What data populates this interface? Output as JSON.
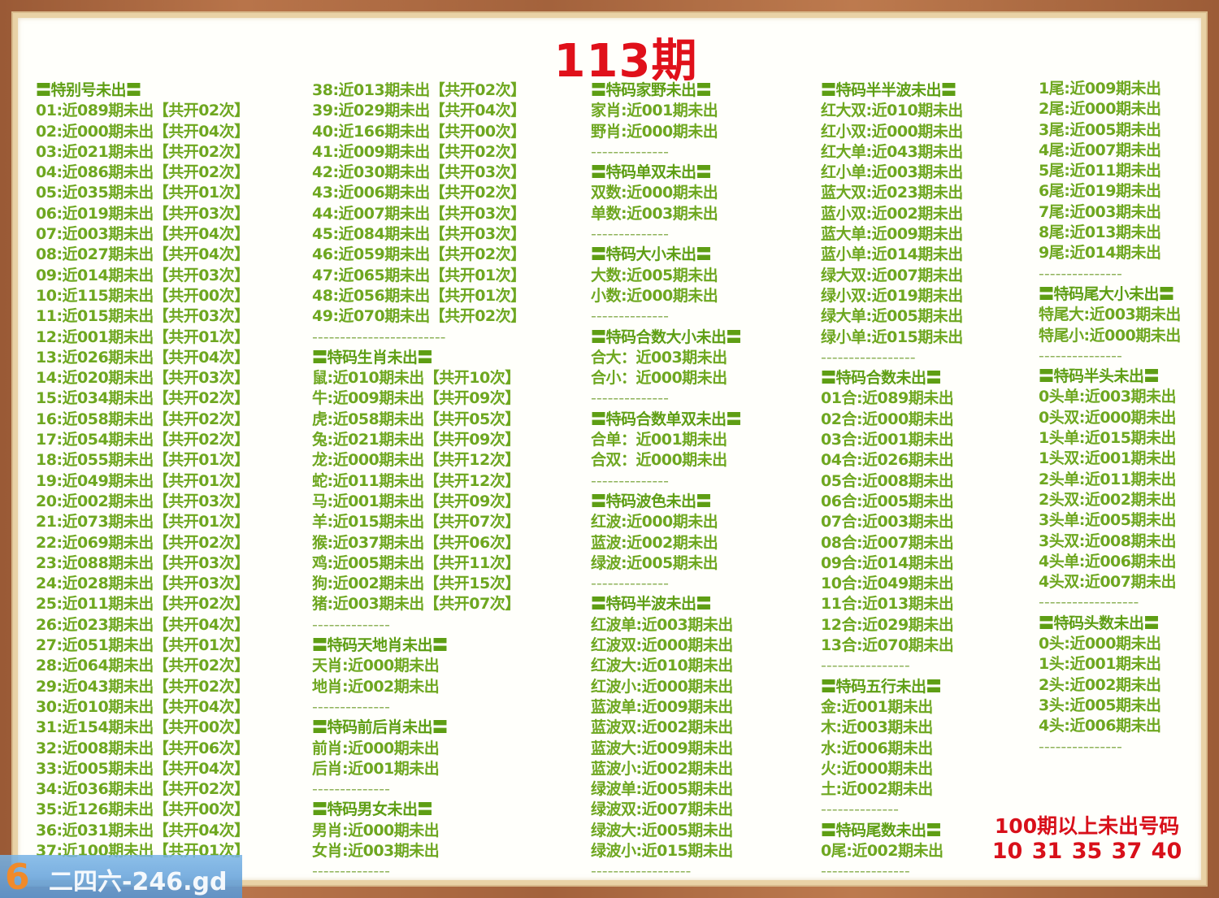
{
  "title": "113期",
  "columns": [
    [
      {
        "t": "header",
        "text": "〓特别号未出〓"
      },
      {
        "t": "item",
        "text": "01:近089期未出【共开02次】"
      },
      {
        "t": "item",
        "text": "02:近000期未出【共开04次】"
      },
      {
        "t": "item",
        "text": "03:近021期未出【共开02次】"
      },
      {
        "t": "item",
        "text": "04:近086期未出【共开02次】"
      },
      {
        "t": "item",
        "text": "05:近035期未出【共开01次】"
      },
      {
        "t": "item",
        "text": "06:近019期未出【共开03次】"
      },
      {
        "t": "item",
        "text": "07:近003期未出【共开04次】"
      },
      {
        "t": "item",
        "text": "08:近027期未出【共开04次】"
      },
      {
        "t": "item",
        "text": "09:近014期未出【共开03次】"
      },
      {
        "t": "item",
        "text": "10:近115期未出【共开00次】"
      },
      {
        "t": "item",
        "text": "11:近015期未出【共开03次】"
      },
      {
        "t": "item",
        "text": "12:近001期未出【共开01次】"
      },
      {
        "t": "item",
        "text": "13:近026期未出【共开04次】"
      },
      {
        "t": "item",
        "text": "14:近020期未出【共开03次】"
      },
      {
        "t": "item",
        "text": "15:近034期未出【共开02次】"
      },
      {
        "t": "item",
        "text": "16:近058期未出【共开02次】"
      },
      {
        "t": "item",
        "text": "17:近054期未出【共开02次】"
      },
      {
        "t": "item",
        "text": "18:近055期未出【共开01次】"
      },
      {
        "t": "item",
        "text": "19:近049期未出【共开01次】"
      },
      {
        "t": "item",
        "text": "20:近002期未出【共开03次】"
      },
      {
        "t": "item",
        "text": "21:近073期未出【共开01次】"
      },
      {
        "t": "item",
        "text": "22:近069期未出【共开02次】"
      },
      {
        "t": "item",
        "text": "23:近088期未出【共开03次】"
      },
      {
        "t": "item",
        "text": "24:近028期未出【共开03次】"
      },
      {
        "t": "item",
        "text": "25:近011期未出【共开02次】"
      },
      {
        "t": "item",
        "text": "26:近023期未出【共开04次】"
      },
      {
        "t": "item",
        "text": "27:近051期未出【共开01次】"
      },
      {
        "t": "item",
        "text": "28:近064期未出【共开02次】"
      },
      {
        "t": "item",
        "text": "29:近043期未出【共开02次】"
      },
      {
        "t": "item",
        "text": "30:近010期未出【共开04次】"
      },
      {
        "t": "item",
        "text": "31:近154期未出【共开00次】"
      },
      {
        "t": "item",
        "text": "32:近008期未出【共开06次】"
      },
      {
        "t": "item",
        "text": "33:近005期未出【共开04次】"
      },
      {
        "t": "item",
        "text": "34:近036期未出【共开02次】"
      },
      {
        "t": "item",
        "text": "35:近126期未出【共开00次】"
      },
      {
        "t": "item",
        "text": "36:近031期未出【共开04次】"
      },
      {
        "t": "item",
        "text": "37:近100期未出【共开01次】"
      }
    ],
    [
      {
        "t": "item",
        "text": "38:近013期未出【共开02次】"
      },
      {
        "t": "item",
        "text": "39:近029期未出【共开04次】"
      },
      {
        "t": "item",
        "text": "40:近166期未出【共开00次】"
      },
      {
        "t": "item",
        "text": "41:近009期未出【共开02次】"
      },
      {
        "t": "item",
        "text": "42:近030期未出【共开03次】"
      },
      {
        "t": "item",
        "text": "43:近006期未出【共开02次】"
      },
      {
        "t": "item",
        "text": "44:近007期未出【共开03次】"
      },
      {
        "t": "item",
        "text": "45:近084期未出【共开03次】"
      },
      {
        "t": "item",
        "text": "46:近059期未出【共开02次】"
      },
      {
        "t": "item",
        "text": "47:近065期未出【共开01次】"
      },
      {
        "t": "item",
        "text": "48:近056期未出【共开01次】"
      },
      {
        "t": "item",
        "text": "49:近070期未出【共开02次】"
      },
      {
        "t": "divider",
        "text": "------------------------"
      },
      {
        "t": "header",
        "text": "〓特码生肖未出〓"
      },
      {
        "t": "item",
        "text": "鼠:近010期未出【共开10次】"
      },
      {
        "t": "item",
        "text": "牛:近009期未出【共开09次】"
      },
      {
        "t": "item",
        "text": "虎:近058期未出【共开05次】"
      },
      {
        "t": "item",
        "text": "兔:近021期未出【共开09次】"
      },
      {
        "t": "item",
        "text": "龙:近000期未出【共开12次】"
      },
      {
        "t": "item",
        "text": "蛇:近011期未出【共开12次】"
      },
      {
        "t": "item",
        "text": "马:近001期未出【共开09次】"
      },
      {
        "t": "item",
        "text": "羊:近015期未出【共开07次】"
      },
      {
        "t": "item",
        "text": "猴:近037期未出【共开06次】"
      },
      {
        "t": "item",
        "text": "鸡:近005期未出【共开11次】"
      },
      {
        "t": "item",
        "text": "狗:近002期未出【共开15次】"
      },
      {
        "t": "item",
        "text": "猪:近003期未出【共开07次】"
      },
      {
        "t": "divider",
        "text": "--------------"
      },
      {
        "t": "header",
        "text": "〓特码天地肖未出〓"
      },
      {
        "t": "item",
        "text": "天肖:近000期未出"
      },
      {
        "t": "item",
        "text": "地肖:近002期未出"
      },
      {
        "t": "divider",
        "text": "--------------"
      },
      {
        "t": "header",
        "text": "〓特码前后肖未出〓"
      },
      {
        "t": "item",
        "text": "前肖:近000期未出"
      },
      {
        "t": "item",
        "text": "后肖:近001期未出"
      },
      {
        "t": "divider",
        "text": "--------------"
      },
      {
        "t": "header",
        "text": "〓特码男女未出〓"
      },
      {
        "t": "item",
        "text": "男肖:近000期未出"
      },
      {
        "t": "item",
        "text": "女肖:近003期未出"
      },
      {
        "t": "divider",
        "text": "--------------"
      }
    ],
    [
      {
        "t": "header",
        "text": "〓特码家野未出〓"
      },
      {
        "t": "item",
        "text": "家肖:近001期未出"
      },
      {
        "t": "item",
        "text": "野肖:近000期未出"
      },
      {
        "t": "divider",
        "text": "--------------"
      },
      {
        "t": "header",
        "text": "〓特码单双未出〓"
      },
      {
        "t": "item",
        "text": "双数:近000期未出"
      },
      {
        "t": "item",
        "text": "单数:近003期未出"
      },
      {
        "t": "divider",
        "text": "--------------"
      },
      {
        "t": "header",
        "text": "〓特码大小未出〓"
      },
      {
        "t": "item",
        "text": "大数:近005期未出"
      },
      {
        "t": "item",
        "text": "小数:近000期未出"
      },
      {
        "t": "divider",
        "text": "--------------"
      },
      {
        "t": "header",
        "text": "〓特码合数大小未出〓"
      },
      {
        "t": "item",
        "text": "合大：近003期未出"
      },
      {
        "t": "item",
        "text": "合小：近000期未出"
      },
      {
        "t": "divider",
        "text": "--------------"
      },
      {
        "t": "header",
        "text": "〓特码合数单双未出〓"
      },
      {
        "t": "item",
        "text": "合单：近001期未出"
      },
      {
        "t": "item",
        "text": "合双：近000期未出"
      },
      {
        "t": "divider",
        "text": "--------------"
      },
      {
        "t": "header",
        "text": "〓特码波色未出〓"
      },
      {
        "t": "item",
        "text": "红波:近000期未出"
      },
      {
        "t": "item",
        "text": "蓝波:近002期未出"
      },
      {
        "t": "item",
        "text": "绿波:近005期未出"
      },
      {
        "t": "divider",
        "text": "--------------"
      },
      {
        "t": "header",
        "text": "〓特码半波未出〓"
      },
      {
        "t": "item",
        "text": "红波单:近003期未出"
      },
      {
        "t": "item",
        "text": "红波双:近000期未出"
      },
      {
        "t": "item",
        "text": "红波大:近010期未出"
      },
      {
        "t": "item",
        "text": "红波小:近000期未出"
      },
      {
        "t": "item",
        "text": "蓝波单:近009期未出"
      },
      {
        "t": "item",
        "text": "蓝波双:近002期未出"
      },
      {
        "t": "item",
        "text": "蓝波大:近009期未出"
      },
      {
        "t": "item",
        "text": "蓝波小:近002期未出"
      },
      {
        "t": "item",
        "text": "绿波单:近005期未出"
      },
      {
        "t": "item",
        "text": "绿波双:近007期未出"
      },
      {
        "t": "item",
        "text": "绿波大:近005期未出"
      },
      {
        "t": "item",
        "text": "绿波小:近015期未出"
      },
      {
        "t": "divider",
        "text": "------------------"
      }
    ],
    [
      {
        "t": "header",
        "text": "〓特码半半波未出〓"
      },
      {
        "t": "item",
        "text": "红大双:近010期未出"
      },
      {
        "t": "item",
        "text": "红小双:近000期未出"
      },
      {
        "t": "item",
        "text": "红大单:近043期未出"
      },
      {
        "t": "item",
        "text": "红小单:近003期未出"
      },
      {
        "t": "item",
        "text": "蓝大双:近023期未出"
      },
      {
        "t": "item",
        "text": "蓝小双:近002期未出"
      },
      {
        "t": "item",
        "text": "蓝大单:近009期未出"
      },
      {
        "t": "item",
        "text": "蓝小单:近014期未出"
      },
      {
        "t": "item",
        "text": "绿大双:近007期未出"
      },
      {
        "t": "item",
        "text": "绿小双:近019期未出"
      },
      {
        "t": "item",
        "text": "绿大单:近005期未出"
      },
      {
        "t": "item",
        "text": "绿小单:近015期未出"
      },
      {
        "t": "divider",
        "text": "-----------------"
      },
      {
        "t": "header",
        "text": "〓特码合数未出〓"
      },
      {
        "t": "item",
        "text": "01合:近089期未出"
      },
      {
        "t": "item",
        "text": "02合:近000期未出"
      },
      {
        "t": "item",
        "text": "03合:近001期未出"
      },
      {
        "t": "item",
        "text": "04合:近026期未出"
      },
      {
        "t": "item",
        "text": "05合:近008期未出"
      },
      {
        "t": "item",
        "text": "06合:近005期未出"
      },
      {
        "t": "item",
        "text": "07合:近003期未出"
      },
      {
        "t": "item",
        "text": "08合:近007期未出"
      },
      {
        "t": "item",
        "text": "09合:近014期未出"
      },
      {
        "t": "item",
        "text": "10合:近049期未出"
      },
      {
        "t": "item",
        "text": "11合:近013期未出"
      },
      {
        "t": "item",
        "text": "12合:近029期未出"
      },
      {
        "t": "item",
        "text": "13合:近070期未出"
      },
      {
        "t": "divider",
        "text": "----------------"
      },
      {
        "t": "header",
        "text": "〓特码五行未出〓"
      },
      {
        "t": "item",
        "text": "金:近001期未出"
      },
      {
        "t": "item",
        "text": "木:近003期未出"
      },
      {
        "t": "item",
        "text": "水:近006期未出"
      },
      {
        "t": "item",
        "text": "火:近000期未出"
      },
      {
        "t": "item",
        "text": "土:近002期未出"
      },
      {
        "t": "divider",
        "text": "--------------"
      },
      {
        "t": "header",
        "text": "〓特码尾数未出〓"
      },
      {
        "t": "item",
        "text": "0尾:近002期未出"
      },
      {
        "t": "divider",
        "text": "----------------"
      }
    ],
    [
      {
        "t": "item",
        "text": "1尾:近009期未出"
      },
      {
        "t": "item",
        "text": "2尾:近000期未出"
      },
      {
        "t": "item",
        "text": "3尾:近005期未出"
      },
      {
        "t": "item",
        "text": "4尾:近007期未出"
      },
      {
        "t": "item",
        "text": "5尾:近011期未出"
      },
      {
        "t": "item",
        "text": "6尾:近019期未出"
      },
      {
        "t": "item",
        "text": "7尾:近003期未出"
      },
      {
        "t": "item",
        "text": "8尾:近013期未出"
      },
      {
        "t": "item",
        "text": "9尾:近014期未出"
      },
      {
        "t": "divider",
        "text": "---------------"
      },
      {
        "t": "header",
        "text": "〓特码尾大小未出〓"
      },
      {
        "t": "item",
        "text": "特尾大:近003期未出"
      },
      {
        "t": "item",
        "text": "特尾小:近000期未出"
      },
      {
        "t": "divider",
        "text": "---------------"
      },
      {
        "t": "header",
        "text": "〓特码半头未出〓"
      },
      {
        "t": "item",
        "text": "0头单:近003期未出"
      },
      {
        "t": "item",
        "text": "0头双:近000期未出"
      },
      {
        "t": "item",
        "text": "1头单:近015期未出"
      },
      {
        "t": "item",
        "text": "1头双:近001期未出"
      },
      {
        "t": "item",
        "text": "2头单:近011期未出"
      },
      {
        "t": "item",
        "text": "2头双:近002期未出"
      },
      {
        "t": "item",
        "text": "3头单:近005期未出"
      },
      {
        "t": "item",
        "text": "3头双:近008期未出"
      },
      {
        "t": "item",
        "text": "4头单:近006期未出"
      },
      {
        "t": "item",
        "text": "4头双:近007期未出"
      },
      {
        "t": "divider",
        "text": "------------------"
      },
      {
        "t": "header",
        "text": "〓特码头数未出〓"
      },
      {
        "t": "item",
        "text": "0头:近000期未出"
      },
      {
        "t": "item",
        "text": "1头:近001期未出"
      },
      {
        "t": "item",
        "text": "2头:近002期未出"
      },
      {
        "t": "item",
        "text": "3头:近005期未出"
      },
      {
        "t": "item",
        "text": "4头:近006期未出"
      },
      {
        "t": "divider",
        "text": "---------------"
      }
    ]
  ],
  "note": {
    "title": "100期以上未出号码",
    "numbers": "10 31 35 37 40"
  },
  "watermark": {
    "logo": "6",
    "text": "二四六-246.gd"
  },
  "colors": {
    "text_green": "#6ea720",
    "title_red": "#e0101a",
    "frame_wood": "#a3623c",
    "paper": "#fffffb"
  }
}
